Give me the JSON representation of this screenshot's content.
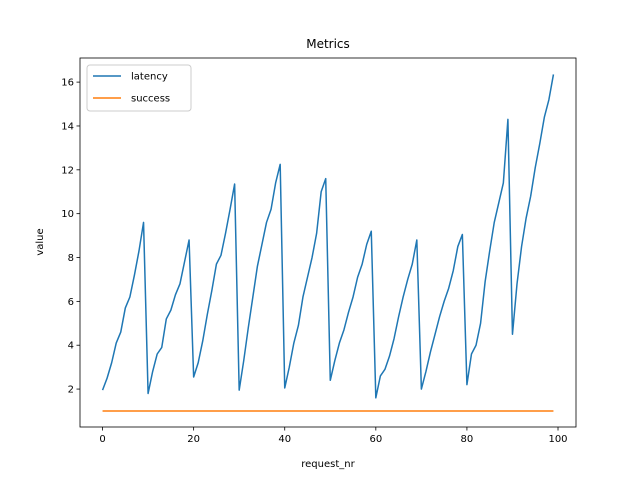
{
  "chart_data": {
    "type": "line",
    "title": "Metrics",
    "xlabel": "request_nr",
    "ylabel": "value",
    "xlim": [
      -4.95,
      103.95
    ],
    "ylim": [
      0.27,
      17.1
    ],
    "xticks": [
      0,
      20,
      40,
      60,
      80,
      100
    ],
    "yticks": [
      2,
      4,
      6,
      8,
      10,
      12,
      14,
      16
    ],
    "legend_position": "upper-left",
    "grid": false,
    "x": [
      0,
      1,
      2,
      3,
      4,
      5,
      6,
      7,
      8,
      9,
      10,
      11,
      12,
      13,
      14,
      15,
      16,
      17,
      18,
      19,
      20,
      21,
      22,
      23,
      24,
      25,
      26,
      27,
      28,
      29,
      30,
      31,
      32,
      33,
      34,
      35,
      36,
      37,
      38,
      39,
      40,
      41,
      42,
      43,
      44,
      45,
      46,
      47,
      48,
      49,
      50,
      51,
      52,
      53,
      54,
      55,
      56,
      57,
      58,
      59,
      60,
      61,
      62,
      63,
      64,
      65,
      66,
      67,
      68,
      69,
      70,
      71,
      72,
      73,
      74,
      75,
      76,
      77,
      78,
      79,
      80,
      81,
      82,
      83,
      84,
      85,
      86,
      87,
      88,
      89,
      90,
      91,
      92,
      93,
      94,
      95,
      96,
      97,
      98,
      99
    ],
    "series": [
      {
        "name": "latency",
        "color": "#1f77b4",
        "values": [
          1.95,
          2.5,
          3.2,
          4.1,
          4.6,
          5.7,
          6.2,
          7.2,
          8.3,
          9.6,
          1.8,
          2.8,
          3.6,
          3.9,
          5.2,
          5.6,
          6.3,
          6.8,
          7.8,
          8.8,
          2.55,
          3.2,
          4.2,
          5.4,
          6.5,
          7.7,
          8.1,
          9.1,
          10.2,
          11.35,
          1.95,
          3.3,
          4.8,
          6.2,
          7.6,
          8.6,
          9.6,
          10.2,
          11.4,
          12.25,
          2.05,
          3.0,
          4.1,
          4.9,
          6.2,
          7.1,
          8.0,
          9.1,
          11.0,
          11.6,
          2.4,
          3.3,
          4.1,
          4.7,
          5.5,
          6.2,
          7.1,
          7.7,
          8.6,
          9.2,
          1.6,
          2.6,
          2.9,
          3.5,
          4.3,
          5.3,
          6.2,
          7.0,
          7.7,
          8.8,
          2.0,
          2.8,
          3.7,
          4.5,
          5.3,
          6.0,
          6.6,
          7.4,
          8.5,
          9.05,
          2.2,
          3.6,
          4.0,
          5.0,
          6.9,
          8.3,
          9.6,
          10.5,
          11.4,
          14.3,
          4.5,
          6.8,
          8.5,
          9.8,
          10.8,
          12.1,
          13.2,
          14.4,
          15.2,
          16.35
        ]
      },
      {
        "name": "success",
        "color": "#ff7f0e",
        "values": [
          1,
          1,
          1,
          1,
          1,
          1,
          1,
          1,
          1,
          1,
          1,
          1,
          1,
          1,
          1,
          1,
          1,
          1,
          1,
          1,
          1,
          1,
          1,
          1,
          1,
          1,
          1,
          1,
          1,
          1,
          1,
          1,
          1,
          1,
          1,
          1,
          1,
          1,
          1,
          1,
          1,
          1,
          1,
          1,
          1,
          1,
          1,
          1,
          1,
          1,
          1,
          1,
          1,
          1,
          1,
          1,
          1,
          1,
          1,
          1,
          1,
          1,
          1,
          1,
          1,
          1,
          1,
          1,
          1,
          1,
          1,
          1,
          1,
          1,
          1,
          1,
          1,
          1,
          1,
          1,
          1,
          1,
          1,
          1,
          1,
          1,
          1,
          1,
          1,
          1,
          1,
          1,
          1,
          1,
          1,
          1,
          1,
          1,
          1,
          1
        ]
      }
    ]
  }
}
